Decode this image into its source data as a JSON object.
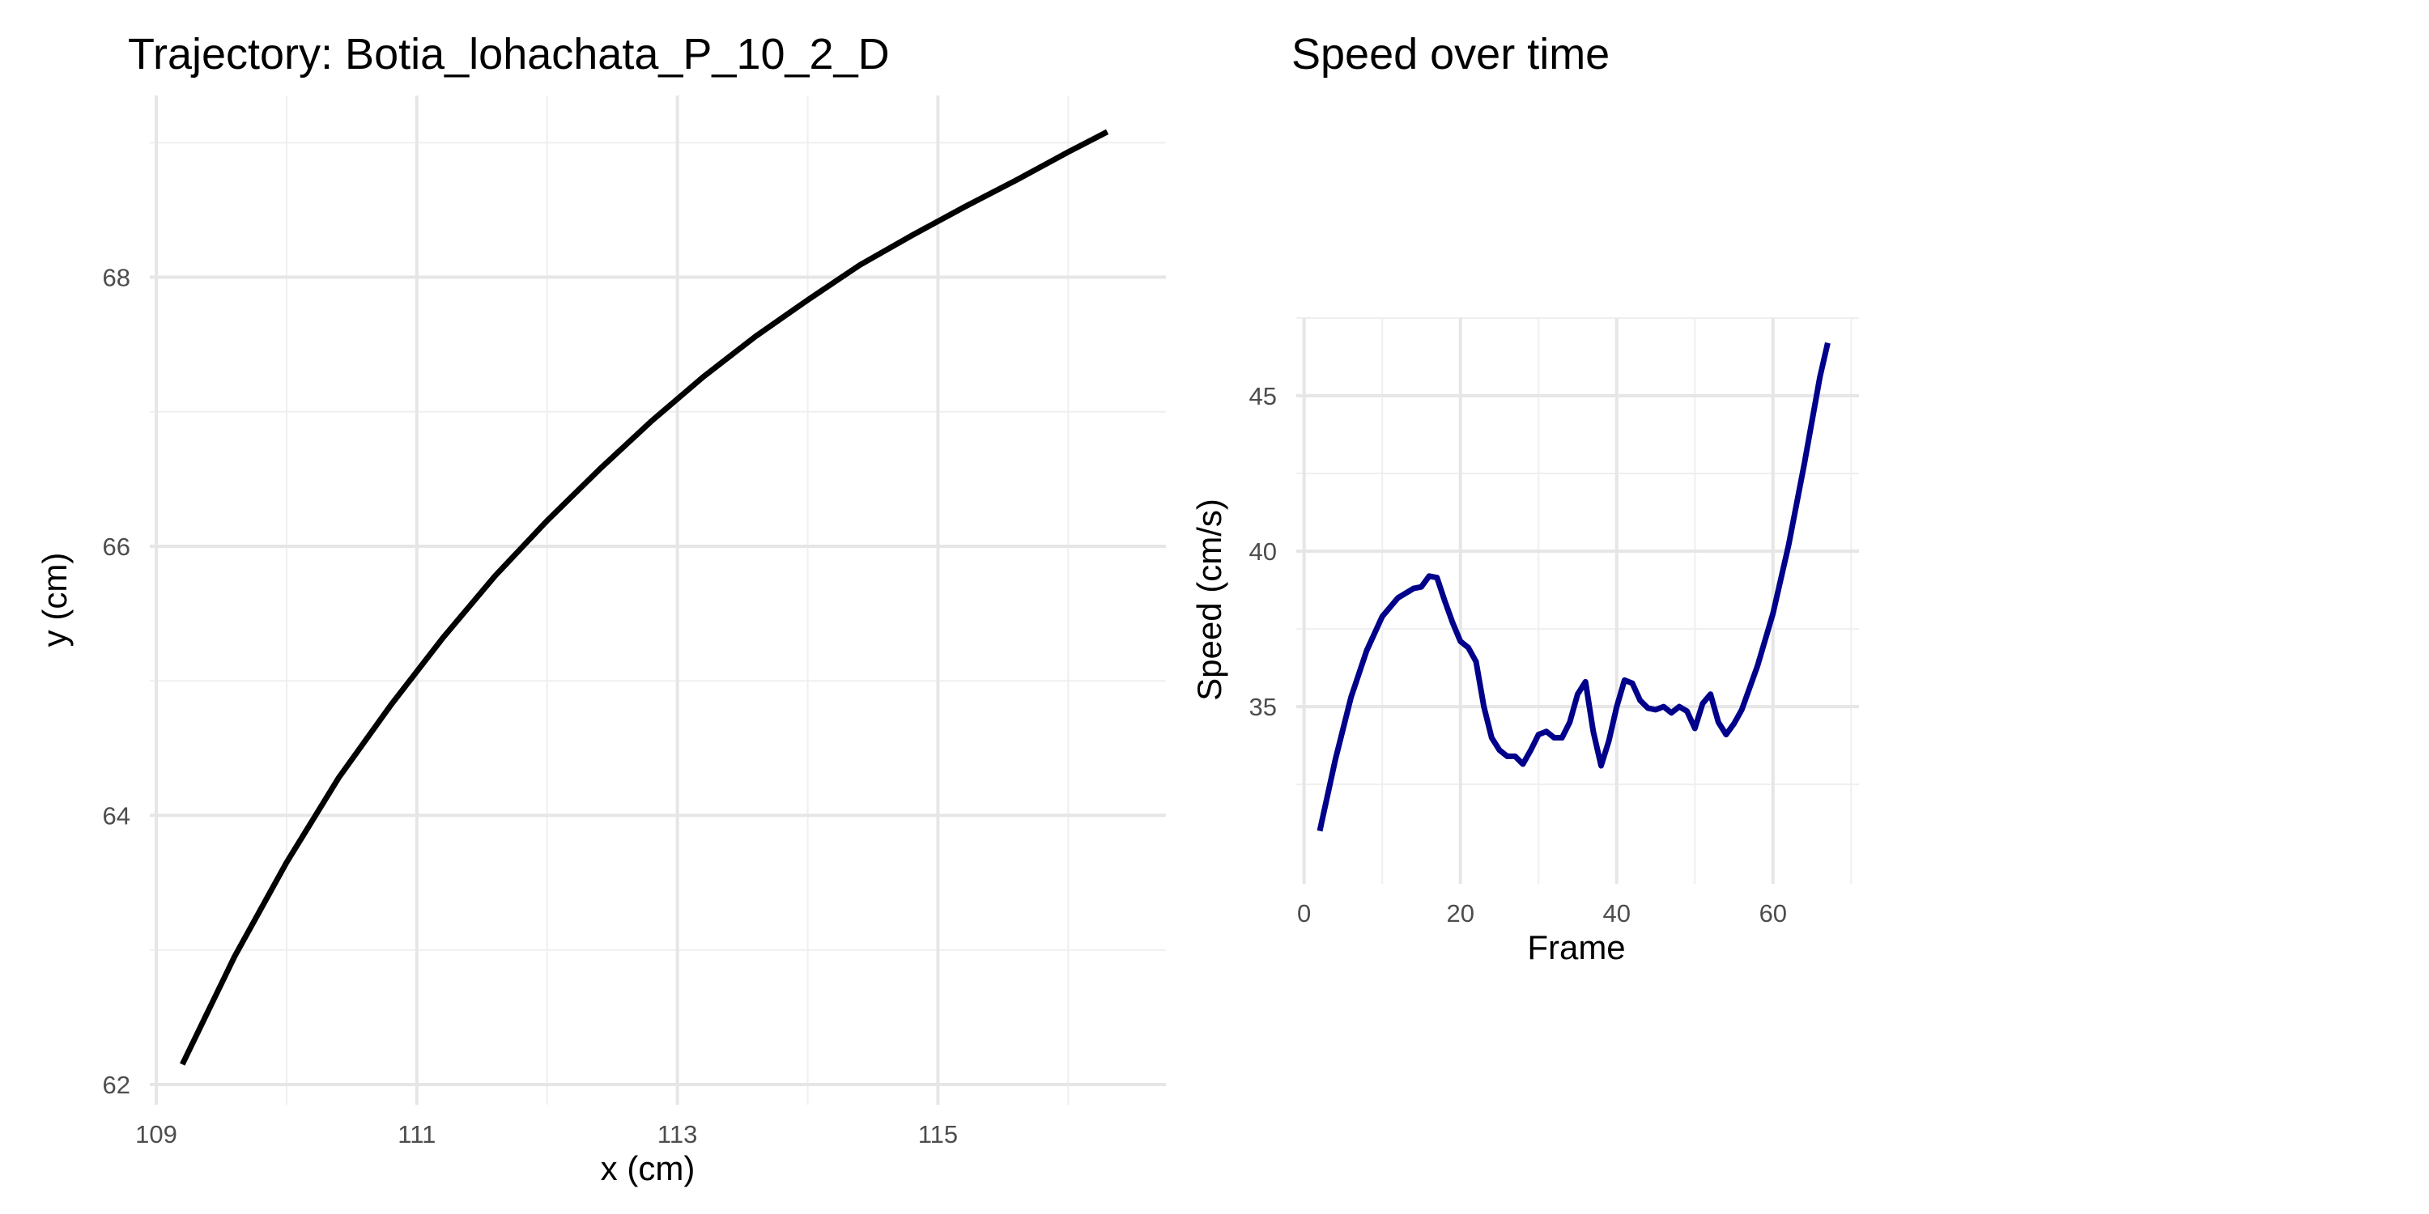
{
  "chart_data": [
    {
      "type": "line",
      "title": "Trajectory: Botia_lohachata_P_10_2_D",
      "xlabel": "x (cm)",
      "ylabel": "y (cm)",
      "xlim": [
        108.95,
        116.75
      ],
      "ylim": [
        61.85,
        69.35
      ],
      "x_ticks": [
        109,
        111,
        113,
        115
      ],
      "x_tick_labels": [
        "109",
        "111",
        "113",
        "115"
      ],
      "y_ticks": [
        62,
        64,
        66,
        68
      ],
      "y_tick_labels": [
        "62",
        "64",
        "66",
        "68"
      ],
      "grid": true,
      "line_color": "#000000",
      "series": [
        {
          "x": [
            109.2,
            109.6,
            110.0,
            110.4,
            110.8,
            111.2,
            111.6,
            112.0,
            112.4,
            112.8,
            113.2,
            113.6,
            114.0,
            114.4,
            114.8,
            115.2,
            115.6,
            116.0,
            116.3
          ],
          "y": [
            62.15,
            62.95,
            63.65,
            64.28,
            64.82,
            65.32,
            65.78,
            66.19,
            66.57,
            66.93,
            67.26,
            67.56,
            67.83,
            68.09,
            68.31,
            68.52,
            68.72,
            68.93,
            69.08
          ]
        }
      ]
    },
    {
      "type": "line",
      "title": "Speed over time",
      "xlabel": "Frame",
      "ylabel": "Speed (cm/s)",
      "xlim": [
        -1,
        71
      ],
      "ylim": [
        29.3,
        47.5
      ],
      "x_ticks": [
        0,
        20,
        40,
        60
      ],
      "x_tick_labels": [
        "0",
        "20",
        "40",
        "60"
      ],
      "y_ticks": [
        35,
        40,
        45
      ],
      "y_tick_labels": [
        "35",
        "40",
        "45"
      ],
      "grid": true,
      "line_color": "#00008B",
      "series": [
        {
          "x": [
            2,
            4,
            6,
            8,
            10,
            12,
            14,
            15,
            16,
            17,
            18,
            19,
            20,
            21,
            22,
            23,
            24,
            25,
            26,
            27,
            28,
            29,
            30,
            31,
            32,
            33,
            34,
            35,
            36,
            37,
            38,
            39,
            40,
            41,
            42,
            43,
            44,
            45,
            46,
            47,
            48,
            49,
            50,
            51,
            52,
            53,
            54,
            55,
            56,
            57,
            58,
            60,
            62,
            64,
            66,
            67
          ],
          "y": [
            31.0,
            33.3,
            35.3,
            36.8,
            37.9,
            38.5,
            38.8,
            38.85,
            39.2,
            39.15,
            38.4,
            37.7,
            37.1,
            36.9,
            36.45,
            35.0,
            34.0,
            33.6,
            33.4,
            33.4,
            33.15,
            33.6,
            34.1,
            34.2,
            34.0,
            34.0,
            34.5,
            35.4,
            35.8,
            34.2,
            33.1,
            33.9,
            35.0,
            35.85,
            35.75,
            35.2,
            34.95,
            34.9,
            35.0,
            34.8,
            35.0,
            34.85,
            34.3,
            35.1,
            35.4,
            34.5,
            34.1,
            34.45,
            34.9,
            35.6,
            36.3,
            38.0,
            40.2,
            42.8,
            45.6,
            46.7
          ]
        }
      ]
    }
  ]
}
